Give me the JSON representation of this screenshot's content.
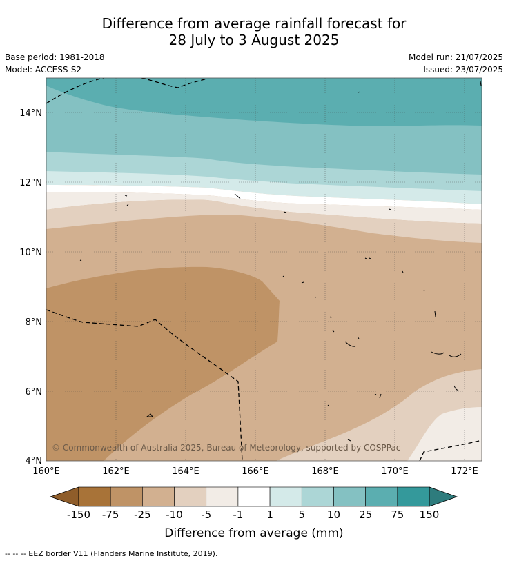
{
  "title": {
    "line1": "Difference from average rainfall forecast for",
    "line2": "28 July to 3 August 2025"
  },
  "meta": {
    "base_period": "Base period: 1981-2018",
    "model": "Model: ACCESS-S2",
    "model_run": "Model run: 21/07/2025",
    "issued": "Issued: 23/07/2025"
  },
  "map": {
    "lon_labels": [
      "160°E",
      "162°E",
      "164°E",
      "166°E",
      "168°E",
      "170°E",
      "172°E"
    ],
    "lat_labels": [
      "4°N",
      "6°N",
      "8°N",
      "10°N",
      "12°N",
      "14°N"
    ],
    "copyright": "© Commonwealth of Australia 2025, Bureau of Meteorology, supported by COSPPac"
  },
  "colorbar": {
    "title": "Difference from average (mm)",
    "tick_labels": [
      "-150",
      "-75",
      "-25",
      "-10",
      "-5",
      "-1",
      "1",
      "5",
      "10",
      "25",
      "75",
      "150"
    ],
    "colors": [
      "#a87338",
      "#bf9366",
      "#d2b090",
      "#e3d0bf",
      "#f2ece6",
      "#ffffff",
      "#d4eae9",
      "#acd6d6",
      "#84c1c2",
      "#5baeb0",
      "#34999b"
    ],
    "low_extend_color": "#8f5d2a",
    "high_extend_color": "#2e7c7d"
  },
  "footnote": "--  --  -- EEZ border V11 (Flanders Marine Institute, 2019)."
}
